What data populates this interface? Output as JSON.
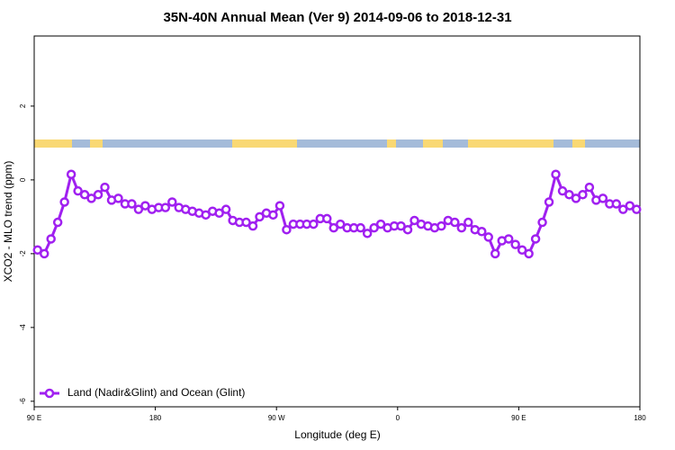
{
  "chart_data": {
    "type": "line",
    "title": "35N-40N Annual Mean (Ver 9)   2014-09-06 to 2018-12-31",
    "x_label": "Longitude (deg E)",
    "y_label": "XCO2 - MLO trend (ppm)",
    "x": [
      92.5,
      97.5,
      102.5,
      107.5,
      112.5,
      117.5,
      122.5,
      127.5,
      132.5,
      137.5,
      142.5,
      147.5,
      152.5,
      157.5,
      162.5,
      167.5,
      172.5,
      177.5,
      182.5,
      187.5,
      192.5,
      197.5,
      202.5,
      207.5,
      212.5,
      217.5,
      222.5,
      227.5,
      232.5,
      237.5,
      242.5,
      247.5,
      252.5,
      257.5,
      262.5,
      267.5,
      272.5,
      277.5,
      282.5,
      287.5,
      292.5,
      297.5,
      302.5,
      307.5,
      312.5,
      317.5,
      322.5,
      327.5,
      332.5,
      337.5,
      342.5,
      347.5,
      352.5,
      357.5,
      362.5,
      367.5,
      372.5,
      377.5,
      382.5,
      387.5,
      392.5,
      397.5,
      402.5,
      407.5,
      412.5,
      417.5,
      422.5,
      427.5,
      432.5,
      437.5,
      442.5,
      447.5,
      452.5,
      457.5,
      462.5,
      467.5,
      472.5,
      477.5,
      482.5,
      487.5,
      492.5,
      497.5,
      502.5,
      507.5,
      512.5,
      517.5,
      522.5,
      527.5,
      532.5,
      537.5
    ],
    "series": [
      {
        "name": "Land (Nadir&Glint) and Ocean (Glint)",
        "color": "#a020f0",
        "values": [
          -1.9,
          -2.0,
          -1.6,
          -1.15,
          -0.6,
          0.15,
          -0.3,
          -0.4,
          -0.5,
          -0.4,
          -0.2,
          -0.55,
          -0.5,
          -0.65,
          -0.65,
          -0.8,
          -0.7,
          -0.8,
          -0.75,
          -0.75,
          -0.6,
          -0.75,
          -0.8,
          -0.85,
          -0.9,
          -0.95,
          -0.85,
          -0.9,
          -0.8,
          -1.1,
          -1.15,
          -1.15,
          -1.25,
          -1.0,
          -0.9,
          -0.95,
          -0.7,
          -1.35,
          -1.2,
          -1.2,
          -1.2,
          -1.2,
          -1.05,
          -1.05,
          -1.3,
          -1.2,
          -1.3,
          -1.3,
          -1.3,
          -1.45,
          -1.3,
          -1.2,
          -1.3,
          -1.25,
          -1.25,
          -1.35,
          -1.1,
          -1.2,
          -1.25,
          -1.3,
          -1.25,
          -1.1,
          -1.15,
          -1.3,
          -1.15,
          -1.35,
          -1.4,
          -1.55,
          -2.0,
          -1.65,
          -1.6,
          -1.75,
          -1.9,
          -2.0,
          -1.6,
          -1.15,
          -0.6,
          0.15,
          -0.3,
          -0.4,
          -0.5,
          -0.4,
          -0.2,
          -0.55,
          -0.5,
          -0.65,
          -0.65,
          -0.8,
          -0.7,
          -0.8
        ]
      }
    ],
    "xlim": [
      90,
      540
    ],
    "xticks": [
      {
        "value": 90,
        "label": "90 E"
      },
      180,
      {
        "value": 270,
        "label": "90 W"
      },
      {
        "value": 360,
        "label": "0"
      },
      {
        "value": 450,
        "label": "90 E"
      },
      {
        "value": 540,
        "label": "180"
      }
    ],
    "ylim": [
      -6.15,
      3.9
    ],
    "yticks": [
      2,
      0,
      -2,
      -4,
      -6
    ],
    "legend": "bottom-left"
  }
}
